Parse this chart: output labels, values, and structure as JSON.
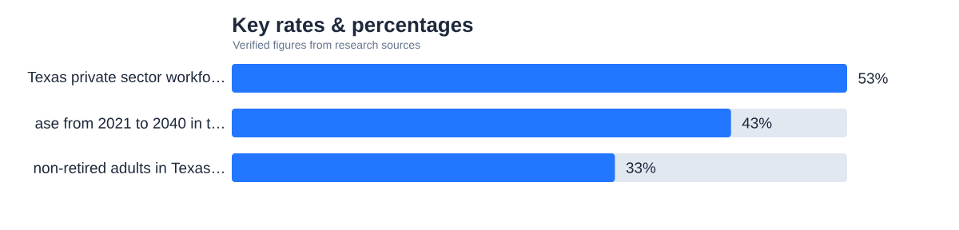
{
  "chart_data": {
    "type": "bar",
    "orientation": "horizontal",
    "title": "Key rates & percentages",
    "subtitle": "Verified figures from research sources",
    "categories": [
      "Texas private sector workfo…",
      "ase from 2021 to 2040 in t…",
      "non-retired adults in Texas…"
    ],
    "values": [
      53,
      43,
      33
    ],
    "color": "#2376ff",
    "xlim": [
      0,
      53
    ],
    "value_labels": [
      "53%",
      "43%",
      "33%"
    ]
  }
}
